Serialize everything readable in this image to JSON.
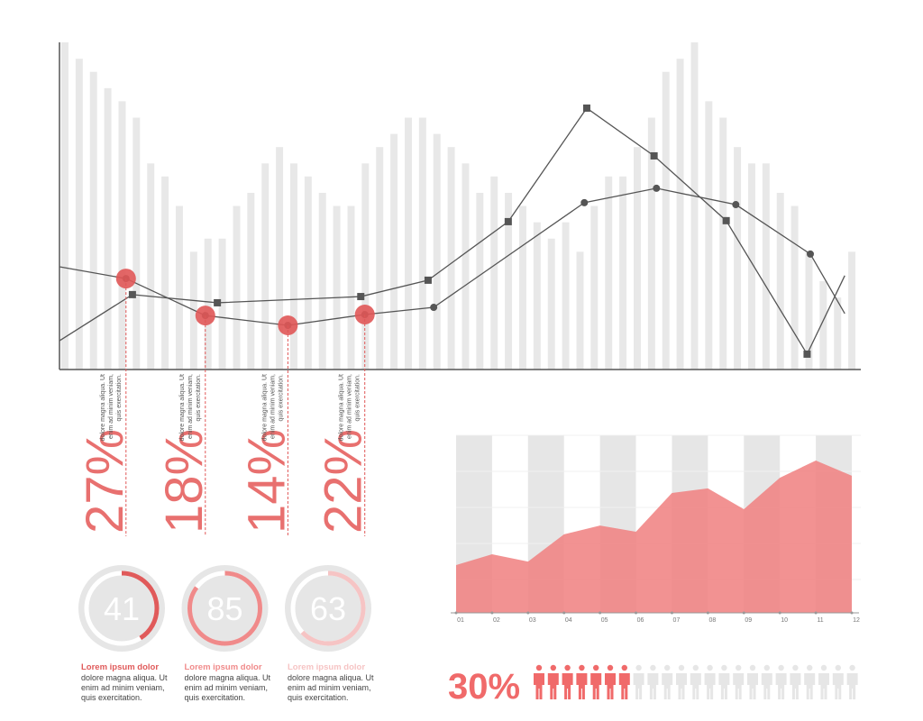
{
  "chart_data": [
    {
      "type": "combo",
      "xlim": [
        0,
        100
      ],
      "ylim": [
        0,
        100
      ],
      "bar_color": "#e8e8e8",
      "bars": [
        100,
        95,
        91,
        86,
        82,
        77,
        63,
        59,
        50,
        36,
        40,
        40,
        50,
        54,
        63,
        68,
        63,
        59,
        54,
        50,
        50,
        63,
        68,
        72,
        77,
        77,
        72,
        68,
        63,
        54,
        59,
        54,
        50,
        45,
        40,
        45,
        36,
        50,
        59,
        59,
        68,
        77,
        91,
        95,
        100,
        82,
        77,
        68,
        63,
        63,
        54,
        50,
        36,
        27,
        22,
        36
      ],
      "series": [
        {
          "color": "#555555",
          "marker": "square",
          "x": [
            0,
            9.1,
            19.7,
            37.6,
            46.0,
            56.0,
            65.8,
            74.2,
            83.2,
            93.3,
            98.0
          ],
          "values": [
            8.8,
            22.9,
            20.4,
            22.3,
            27.3,
            45.2,
            79.9,
            65.3,
            45.5,
            4.7,
            28.7
          ]
        },
        {
          "color": "#555555",
          "marker": "circle",
          "x": [
            0,
            8.3,
            18.2,
            28.5,
            38.1,
            46.7,
            65.5,
            74.5,
            84.4,
            93.7,
            98.0
          ],
          "values": [
            31.4,
            27.8,
            16.5,
            13.5,
            16.8,
            19.0,
            51.0,
            55.4,
            50.4,
            35.3,
            17.1
          ]
        }
      ]
    },
    {
      "type": "callouts",
      "color": "#e05656",
      "items": [
        {
          "value": 27,
          "value_label": "27%",
          "text": [
            "dolore magna aliqua. Ut",
            "enim ad minim veniam,",
            "quis exercitation."
          ]
        },
        {
          "value": 18,
          "value_label": "18%",
          "text": [
            "dolore magna aliqua. Ut",
            "enim ad minim veniam,",
            "quis exercitation."
          ]
        },
        {
          "value": 14,
          "value_label": "14%",
          "text": [
            "dolore magna aliqua. Ut",
            "enim ad minim veniam,",
            "quis exercitation."
          ]
        },
        {
          "value": 22,
          "value_label": "22%",
          "text": [
            "dolore magna aliqua. Ut",
            "enim ad minim veniam,",
            "quis exercitation."
          ]
        }
      ]
    },
    {
      "type": "gauge",
      "ylim": [
        0,
        100
      ],
      "items": [
        {
          "value": 41,
          "color": "#e05a5a",
          "title": "Lorem ipsum dolor",
          "text": [
            "dolore magna aliqua. Ut",
            "enim ad minim veniam,",
            "quis exercitation."
          ]
        },
        {
          "value": 85,
          "color": "#f08a8a",
          "title": "Lorem ipsum dolor",
          "text": [
            "dolore magna aliqua. Ut",
            "enim ad minim veniam,",
            "quis exercitation."
          ]
        },
        {
          "value": 63,
          "color": "#f6c4c4",
          "title": "Lorem ipsum dolor",
          "text": [
            "dolore magna aliqua. Ut",
            "enim ad minim veniam,",
            "quis exercitation."
          ]
        }
      ]
    },
    {
      "type": "area",
      "color": "#f07f7f",
      "band_color": "#e6e6e6",
      "ylim": [
        0,
        100
      ],
      "categories": [
        "01",
        "02",
        "03",
        "04",
        "05",
        "06",
        "07",
        "08",
        "09",
        "10",
        "11",
        "12"
      ],
      "values": [
        26.9,
        33.0,
        28.9,
        44.2,
        49.2,
        45.7,
        67.5,
        70.1,
        58.4,
        76.1,
        85.8,
        77.2
      ]
    },
    {
      "type": "pictogram",
      "value": 30,
      "value_label": "30%",
      "count": 23,
      "color": "#f06a6a",
      "empty_color": "#e6e6e6"
    }
  ]
}
